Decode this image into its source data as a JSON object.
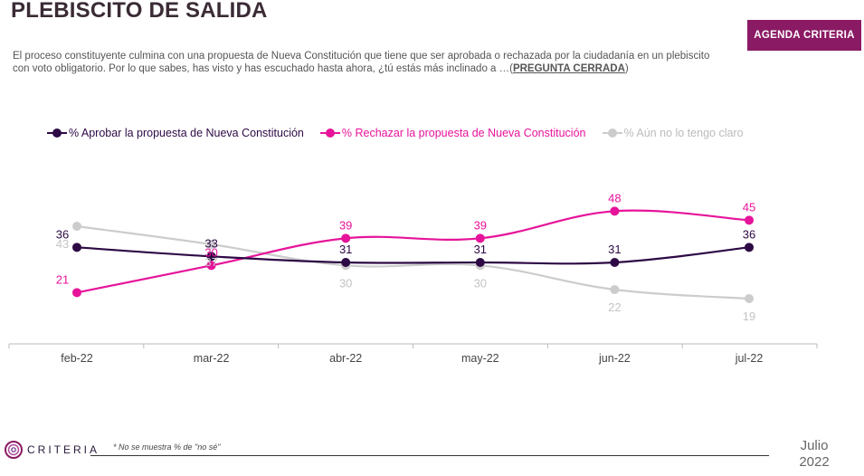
{
  "title": "PLEBISCITO DE SALIDA",
  "badge": "AGENDA CRITERIA",
  "subtitle": {
    "text": "El proceso constituyente culmina con una propuesta de Nueva Constitución que tiene que ser aprobada o rechazada por la ciudadanía en un plebiscito con voto obligatorio. Por lo que sabes, has visto y has escuchado hasta ahora, ¿tú estás más inclinado a …(",
    "emphasis": "PREGUNTA CERRADA",
    "end": ")"
  },
  "footer": {
    "logo": "CRITERIA",
    "note": "* No se muestra % de \"no sé\"",
    "date_month": "Julio",
    "date_year": "2022"
  },
  "chart_data": {
    "type": "line",
    "categories": [
      "feb-22",
      "mar-22",
      "abr-22",
      "may-22",
      "jun-22",
      "jul-22"
    ],
    "ylim": [
      10,
      55
    ],
    "series": [
      {
        "name": "% Aprobar la propuesta de Nueva Constitución",
        "color": "#2d0a45",
        "values": [
          36,
          33,
          31,
          31,
          31,
          36
        ],
        "labels_below": false
      },
      {
        "name": "% Rechazar la propuesta de Nueva Constitución",
        "color": "#e6149a",
        "values": [
          21,
          30,
          39,
          39,
          48,
          45
        ],
        "labels_below": false
      },
      {
        "name": "% Aún no lo tengo claro",
        "color": "#cccccc",
        "values": [
          43,
          37,
          30,
          30,
          22,
          19
        ],
        "labels_below": true
      }
    ]
  }
}
